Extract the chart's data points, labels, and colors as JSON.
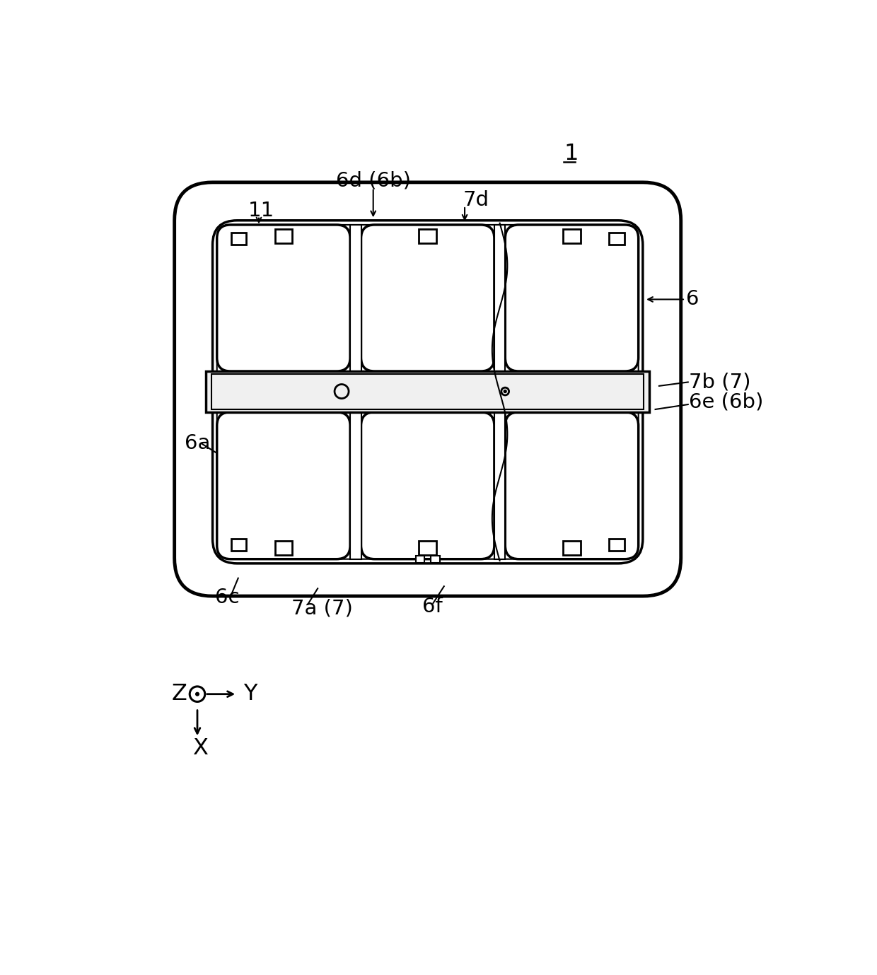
{
  "fig_width": 12.4,
  "fig_height": 13.79,
  "bg_color": "#ffffff",
  "lc": "#000000",
  "label_1": "1",
  "label_11": "11",
  "label_6": "6",
  "label_6a": "6a",
  "label_6d6b": "6d (6b)",
  "label_6c": "6c",
  "label_6e": "6e (6b)",
  "label_6f": "6f",
  "label_7a": "7a (7)",
  "label_7b": "7b (7)",
  "label_7d": "7d",
  "label_Z": "Z",
  "label_Y": "Y",
  "label_X": "X"
}
